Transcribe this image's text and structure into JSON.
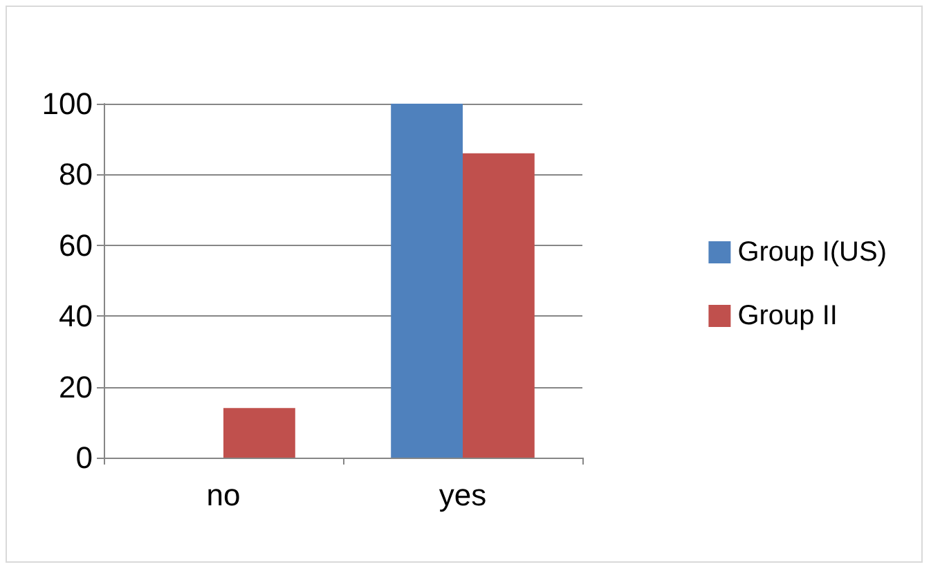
{
  "chart_data": {
    "type": "bar",
    "categories": [
      "no",
      "yes"
    ],
    "series": [
      {
        "name": "Group I(US)",
        "color": "#4f81bd",
        "values": [
          0,
          100
        ]
      },
      {
        "name": "Group II",
        "color": "#c0504d",
        "values": [
          14,
          86
        ]
      }
    ],
    "ylim": [
      0,
      100
    ],
    "yticks": [
      0,
      20,
      40,
      60,
      80,
      100
    ],
    "grid": "y",
    "legend": "right"
  }
}
